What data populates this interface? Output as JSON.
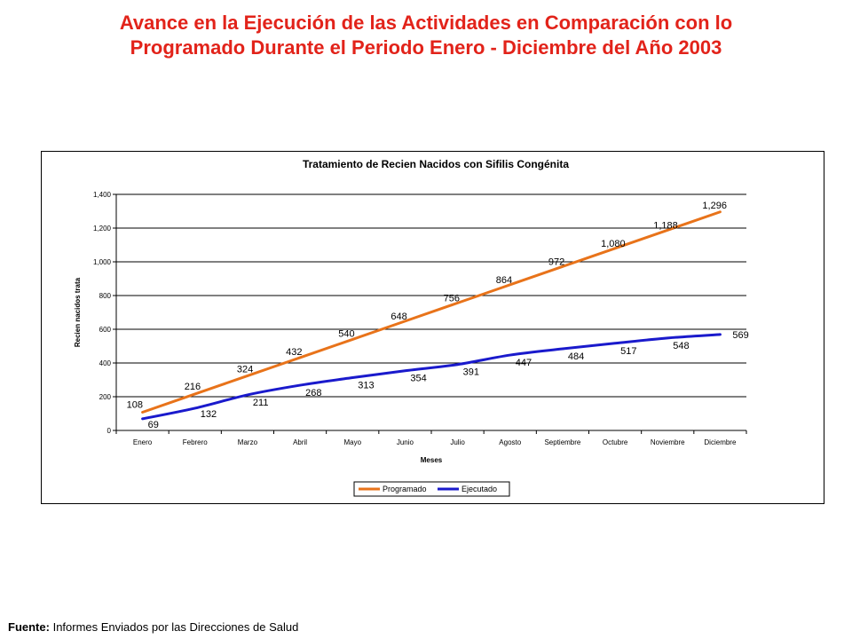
{
  "header": {
    "title_line1": "Avance en la Ejecución de las Actividades en Comparación con lo",
    "title_line2": "Programado Durante el Periodo Enero - Diciembre del Año 2003"
  },
  "footer": {
    "source_label": "Fuente:",
    "source_text": "Informes Enviados por las Direcciones de Salud"
  },
  "colors": {
    "programado": "#e8731a",
    "ejecutado": "#1a1acc",
    "title": "#e2231a",
    "gridline": "#000000"
  },
  "chart_data": {
    "type": "line",
    "title": "Tratamiento de Recien Nacidos con Sifilis Congénita",
    "xlabel": "Meses",
    "ylabel": "Recien nacidos trata",
    "categories": [
      "Enero",
      "Febrero",
      "Marzo",
      "Abril",
      "Mayo",
      "Junio",
      "Julio",
      "Agosto",
      "Septiembre",
      "Octubre",
      "Noviembre",
      "Diciembre"
    ],
    "ylim": [
      0,
      1400
    ],
    "yticks": [
      0,
      200,
      400,
      600,
      800,
      1000,
      1200,
      1400
    ],
    "ytick_labels": [
      "0",
      "200",
      "400",
      "600",
      "800",
      "1,000",
      "1,200",
      "1,400"
    ],
    "grid": true,
    "legend_position": "bottom-right",
    "series": [
      {
        "name": "Programado",
        "values": [
          108,
          216,
          324,
          432,
          540,
          648,
          756,
          864,
          972,
          1080,
          1188,
          1296
        ],
        "labels": [
          "108",
          "216",
          "324",
          "432",
          "540",
          "648",
          "756",
          "864",
          "972",
          "1,080",
          "1,188",
          "1,296"
        ]
      },
      {
        "name": "Ejecutado",
        "values": [
          69,
          132,
          211,
          268,
          313,
          354,
          391,
          447,
          484,
          517,
          548,
          569
        ],
        "labels": [
          "69",
          "132",
          "211",
          "268",
          "313",
          "354",
          "391",
          "447",
          "484",
          "517",
          "548",
          "569"
        ]
      }
    ]
  }
}
